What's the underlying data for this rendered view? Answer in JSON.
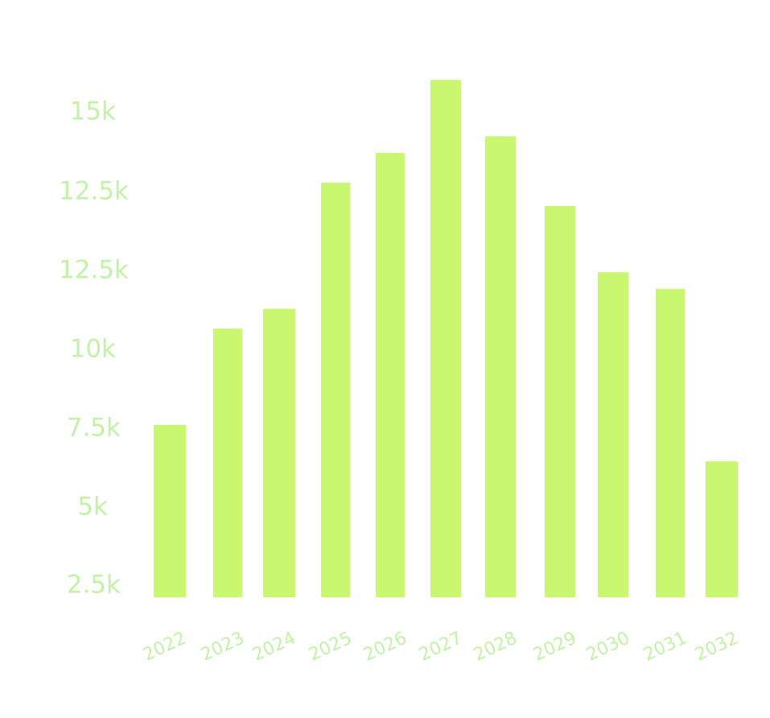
{
  "colors": {
    "bar": "#c9f76f",
    "tick_label": "#c2f2a6"
  },
  "chart_data": {
    "type": "bar",
    "title": "",
    "xlabel": "",
    "ylabel": "",
    "categories": [
      "2022",
      "2023",
      "2024",
      "2025",
      "2026",
      "2027",
      "2028",
      "2029",
      "2030",
      "2031",
      "2032"
    ],
    "values": [
      5.2,
      8.1,
      8.7,
      12.5,
      13.4,
      15.6,
      13.9,
      11.8,
      9.8,
      9.3,
      4.1
    ],
    "y_tick_labels": [
      "15k",
      "12.5k",
      "12.5k",
      "10k",
      "7.5k",
      "5k",
      "2.5k"
    ],
    "ylim": [
      0,
      16.5
    ],
    "grid": false,
    "legend": "none"
  }
}
